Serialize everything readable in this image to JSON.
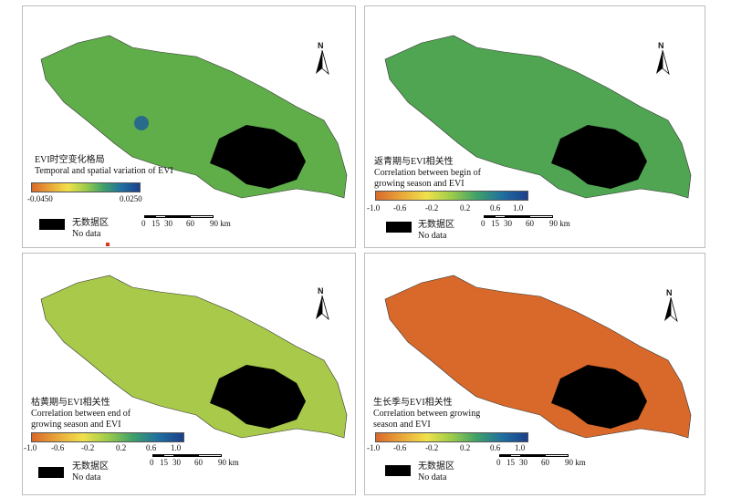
{
  "panels": [
    {
      "title_cn": "EVI时空变化格局",
      "title_en": "Temporal and spatial variation of EVI",
      "ticks": [
        "-0.0450",
        "0.0250"
      ],
      "colorbar": [
        "#d9692a",
        "#e9a63a",
        "#f1e14a",
        "#9ccc4a",
        "#3fa06a",
        "#1f6fa0",
        "#1c3f8c"
      ]
    },
    {
      "title_cn": "返青期与EVI相关性",
      "title_en_1": "Correlation between begin of",
      "title_en_2": "growing season and EVI",
      "ticks": [
        "-1.0",
        "-0.6",
        "-0.2",
        "0.2",
        "0.6",
        "1.0"
      ],
      "colorbar": [
        "#d9692a",
        "#e9a63a",
        "#f1e14a",
        "#9ccc4a",
        "#3fa06a",
        "#1f6fa0",
        "#1c3f8c"
      ]
    },
    {
      "title_cn": "枯黄期与EVI相关性",
      "title_en_1": "Correlation between end of",
      "title_en_2": "growing season and EVI",
      "ticks": [
        "-1.0",
        "-0.6",
        "-0.2",
        "0.2",
        "0.6",
        "1.0"
      ],
      "colorbar": [
        "#d9692a",
        "#e9a63a",
        "#f1e14a",
        "#9ccc4a",
        "#3fa06a",
        "#1f6fa0",
        "#1c3f8c"
      ]
    },
    {
      "title_cn": "生长季与EVI相关性",
      "title_en_1": "Correlation between growing",
      "title_en_2": "season and EVI",
      "ticks": [
        "-1.0",
        "-0.6",
        "-0.2",
        "0.2",
        "0.6",
        "1.0"
      ],
      "colorbar": [
        "#d9692a",
        "#e9a63a",
        "#f1e14a",
        "#9ccc4a",
        "#3fa06a",
        "#1f6fa0",
        "#1c3f8c"
      ]
    }
  ],
  "common": {
    "north_label": "N",
    "nodata_cn": "无数据区",
    "nodata_en": "No data",
    "scale_labels": [
      "0",
      "15",
      "30",
      "60",
      "90 km"
    ]
  },
  "map_fill": {
    "p1": "#5fae4a",
    "p2": "#4fa552",
    "p3": "#a8c94a",
    "p4": "#d9692a",
    "lake": "#000000"
  }
}
